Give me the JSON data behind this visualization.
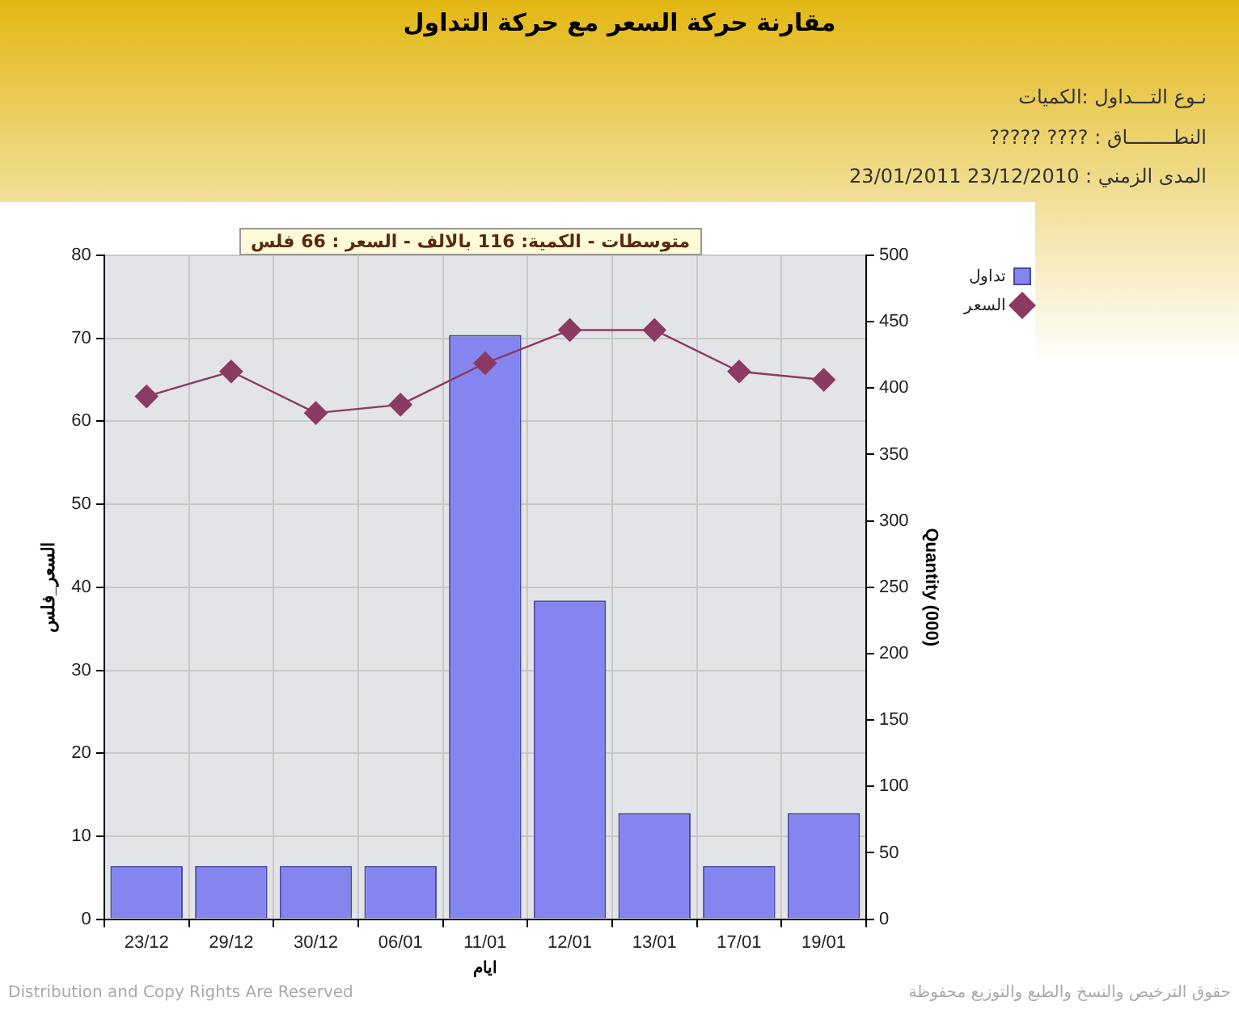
{
  "chart_data": {
    "type": "bar",
    "title": "مقارنة حركة السعر مع حركة التداول",
    "xlabel": "ايام",
    "ylabel": "السعر_فلس",
    "y2label": "Quantity (000)",
    "annotations": [
      "نـوع التـــداول :الكميات",
      "النطــــــــاق : ????     ?????",
      "المدى الزمني :   23/12/2010 23/01/2011",
      "متوسطات - الكمية: 116 بالالف  - السعر : 66 فلس",
      "Distribution and Copy Rights Are Reserved",
      "حقوق الترخيص والنسخ والطبع والتوزيع محفوظة"
    ],
    "categories": [
      "23/12",
      "29/12",
      "30/12",
      "06/01",
      "11/01",
      "12/01",
      "13/01",
      "17/01",
      "19/01"
    ],
    "series": [
      {
        "name": "تداول",
        "axis": "y2",
        "color": "#8585f0",
        "values": [
          40,
          40,
          40,
          40,
          440,
          240,
          80,
          40,
          80
        ]
      },
      {
        "name": "السعر",
        "type": "line",
        "color": "#8b3a62",
        "values": [
          63,
          66,
          61,
          62,
          67,
          71,
          71,
          66,
          65
        ]
      }
    ],
    "ylim": [
      0,
      80
    ],
    "yticks": [
      0,
      10,
      20,
      30,
      40,
      50,
      60,
      70,
      80
    ],
    "y2lim": [
      0,
      500
    ],
    "y2ticks": [
      0,
      50,
      100,
      150,
      200,
      250,
      300,
      350,
      400,
      450,
      500
    ],
    "grid": true,
    "legend": "top right",
    "marker": "diamond",
    "line_style": "solid"
  }
}
